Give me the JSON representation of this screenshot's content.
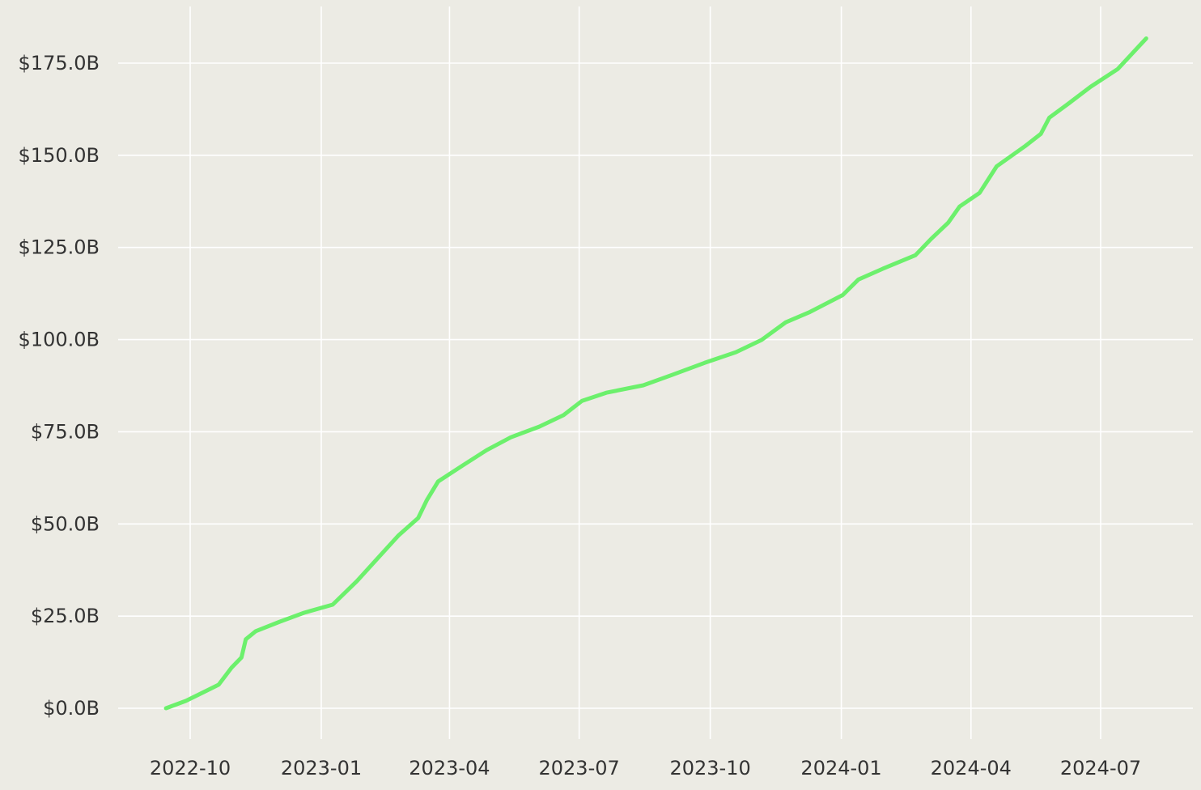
{
  "chart_data": {
    "type": "line",
    "title": "",
    "xlabel": "",
    "ylabel": "",
    "x_ticks": [
      "2022-10-01",
      "2023-01-01",
      "2023-04-01",
      "2023-07-01",
      "2023-10-01",
      "2024-01-01",
      "2024-04-01",
      "2024-07-01"
    ],
    "x_tick_labels": [
      "2022-10",
      "2023-01",
      "2023-04",
      "2023-07",
      "2023-10",
      "2024-01",
      "2024-04",
      "2024-07"
    ],
    "y_ticks": [
      0,
      25,
      50,
      75,
      100,
      125,
      150,
      175
    ],
    "y_tick_labels": [
      "$0.0B",
      "$25.0B",
      "$50.0B",
      "$75.0B",
      "$100.0B",
      "$125.0B",
      "$150.0B",
      "$175.0B"
    ],
    "ylim": [
      -5,
      190
    ],
    "xlim": [
      "2022-08-24",
      "2024-08-24"
    ],
    "y_unit": "USD billions",
    "grid": true,
    "background_color": "#ECEBE4",
    "grid_color": "#FFFFFF",
    "line_color": "#6CF06C",
    "series": [
      {
        "x": [
          "2022-09-14",
          "2022-09-28",
          "2022-10-21",
          "2022-10-30",
          "2022-11-06",
          "2022-11-09",
          "2022-11-16",
          "2022-12-03",
          "2022-12-20",
          "2023-01-09",
          "2023-01-26",
          "2023-02-12",
          "2023-02-24",
          "2023-03-10",
          "2023-03-16",
          "2023-03-24",
          "2023-04-10",
          "2023-04-27",
          "2023-05-14",
          "2023-06-03",
          "2023-06-20",
          "2023-07-03",
          "2023-07-20",
          "2023-08-15",
          "2023-09-04",
          "2023-09-27",
          "2023-10-19",
          "2023-11-06",
          "2023-11-23",
          "2023-12-10",
          "2024-01-02",
          "2024-01-13",
          "2024-01-30",
          "2024-02-22",
          "2024-03-04",
          "2024-03-16",
          "2024-03-24",
          "2024-04-07",
          "2024-04-19",
          "2024-05-09",
          "2024-05-20",
          "2024-05-26",
          "2024-06-09",
          "2024-06-24",
          "2024-07-13",
          "2024-08-02"
        ],
        "values": [
          0,
          2.0,
          6.4,
          11,
          13.8,
          18.7,
          20.9,
          23.5,
          25.9,
          28.1,
          34.5,
          41.7,
          46.8,
          51.6,
          56.4,
          61.5,
          65.8,
          70,
          73.5,
          76.4,
          79.5,
          83.4,
          85.6,
          87.6,
          90.4,
          93.7,
          96.6,
          99.9,
          104.7,
          107.5,
          112.1,
          116.3,
          119.2,
          122.9,
          127.3,
          131.7,
          136.1,
          139.8,
          147,
          152.5,
          155.8,
          160.2,
          164.2,
          168.6,
          173.4,
          181.7
        ]
      }
    ]
  }
}
